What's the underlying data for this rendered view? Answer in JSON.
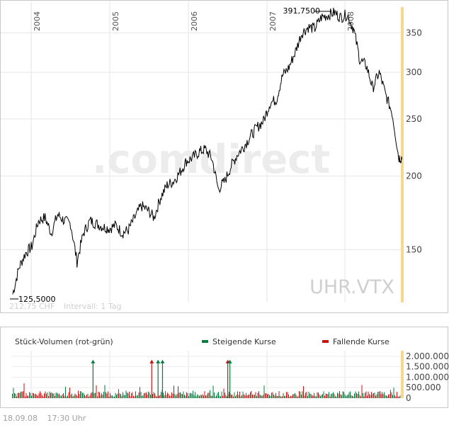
{
  "chart_data": [
    {
      "type": "line",
      "symbol": "UHR.VTX",
      "watermark": ".comdirect",
      "info_text": "212,75 CHF",
      "interval_text": "Intervall: 1 Tag",
      "year_labels": [
        "2004",
        "2005",
        "2006",
        "2007",
        "2008"
      ],
      "y_ticks": [
        "350",
        "300",
        "250",
        "200",
        "150"
      ],
      "y_tick_values": [
        350,
        300,
        250,
        200,
        150
      ],
      "y_scale": "log",
      "ylim": [
        122,
        385
      ],
      "max_label": "391,7500",
      "min_label": "125,5000",
      "series": [
        {
          "x": [
            "2003-09",
            "2003-10",
            "2003-11",
            "2003-12",
            "2004-01",
            "2004-02",
            "2004-03",
            "2004-04",
            "2004-05",
            "2004-06",
            "2004-07",
            "2004-08",
            "2004-09",
            "2004-10",
            "2004-11",
            "2004-12",
            "2005-01",
            "2005-02",
            "2005-03",
            "2005-04",
            "2005-05",
            "2005-06",
            "2005-07",
            "2005-08",
            "2005-09",
            "2005-10",
            "2005-11",
            "2005-12",
            "2006-01",
            "2006-02",
            "2006-03",
            "2006-04",
            "2006-05",
            "2006-06",
            "2006-07",
            "2006-08",
            "2006-09",
            "2006-10",
            "2006-11",
            "2006-12",
            "2007-01",
            "2007-02",
            "2007-03",
            "2007-04",
            "2007-05",
            "2007-06",
            "2007-07",
            "2007-08",
            "2007-09",
            "2007-10",
            "2007-11",
            "2007-12",
            "2008-01",
            "2008-02",
            "2008-03",
            "2008-04",
            "2008-05",
            "2008-06",
            "2008-07",
            "2008-08",
            "2008-09"
          ],
          "values": [
            126,
            140,
            148,
            152,
            168,
            170,
            160,
            172,
            168,
            166,
            143,
            160,
            168,
            166,
            164,
            163,
            165,
            160,
            162,
            170,
            178,
            175,
            170,
            184,
            193,
            196,
            203,
            212,
            215,
            220,
            222,
            214,
            190,
            196,
            208,
            218,
            225,
            234,
            242,
            248,
            266,
            270,
            296,
            306,
            325,
            350,
            358,
            356,
            372,
            375,
            379,
            372,
            376,
            355,
            315,
            308,
            282,
            300,
            275,
            256,
            215
          ]
        }
      ]
    },
    {
      "type": "bar",
      "title": "Stück-Volumen (rot-grün)",
      "legend": [
        {
          "label": "Steigende Kurse",
          "color": "#007f3f"
        },
        {
          "label": "Fallende Kurse",
          "color": "#cc1111"
        }
      ],
      "y_ticks": [
        "2.000.000",
        "1.500.000",
        "1.000.000",
        "500.000",
        "0"
      ],
      "y_tick_values": [
        2000000,
        1500000,
        1000000,
        500000,
        0
      ],
      "ylim": [
        0,
        2200000
      ],
      "spikes": [
        {
          "date": "2004-09-15",
          "value": 1800000,
          "direction": "up"
        },
        {
          "date": "2005-06-20",
          "value": 1800000,
          "direction": "down"
        },
        {
          "date": "2005-07-20",
          "value": 1800000,
          "direction": "up"
        },
        {
          "date": "2005-08-10",
          "value": 1800000,
          "direction": "up"
        },
        {
          "date": "2006-06-15",
          "value": 1800000,
          "direction": "down"
        },
        {
          "date": "2006-06-25",
          "value": 1800000,
          "direction": "up"
        }
      ]
    }
  ],
  "footer": {
    "date": "18.09.08",
    "time": "17:30 Uhr"
  },
  "colors": {
    "price_line": "#000000",
    "rising": "#007f3f",
    "falling": "#cc1111",
    "today_bar": "#f8d890",
    "grid": "#e6e6e6",
    "border": "#c8c8c8"
  }
}
